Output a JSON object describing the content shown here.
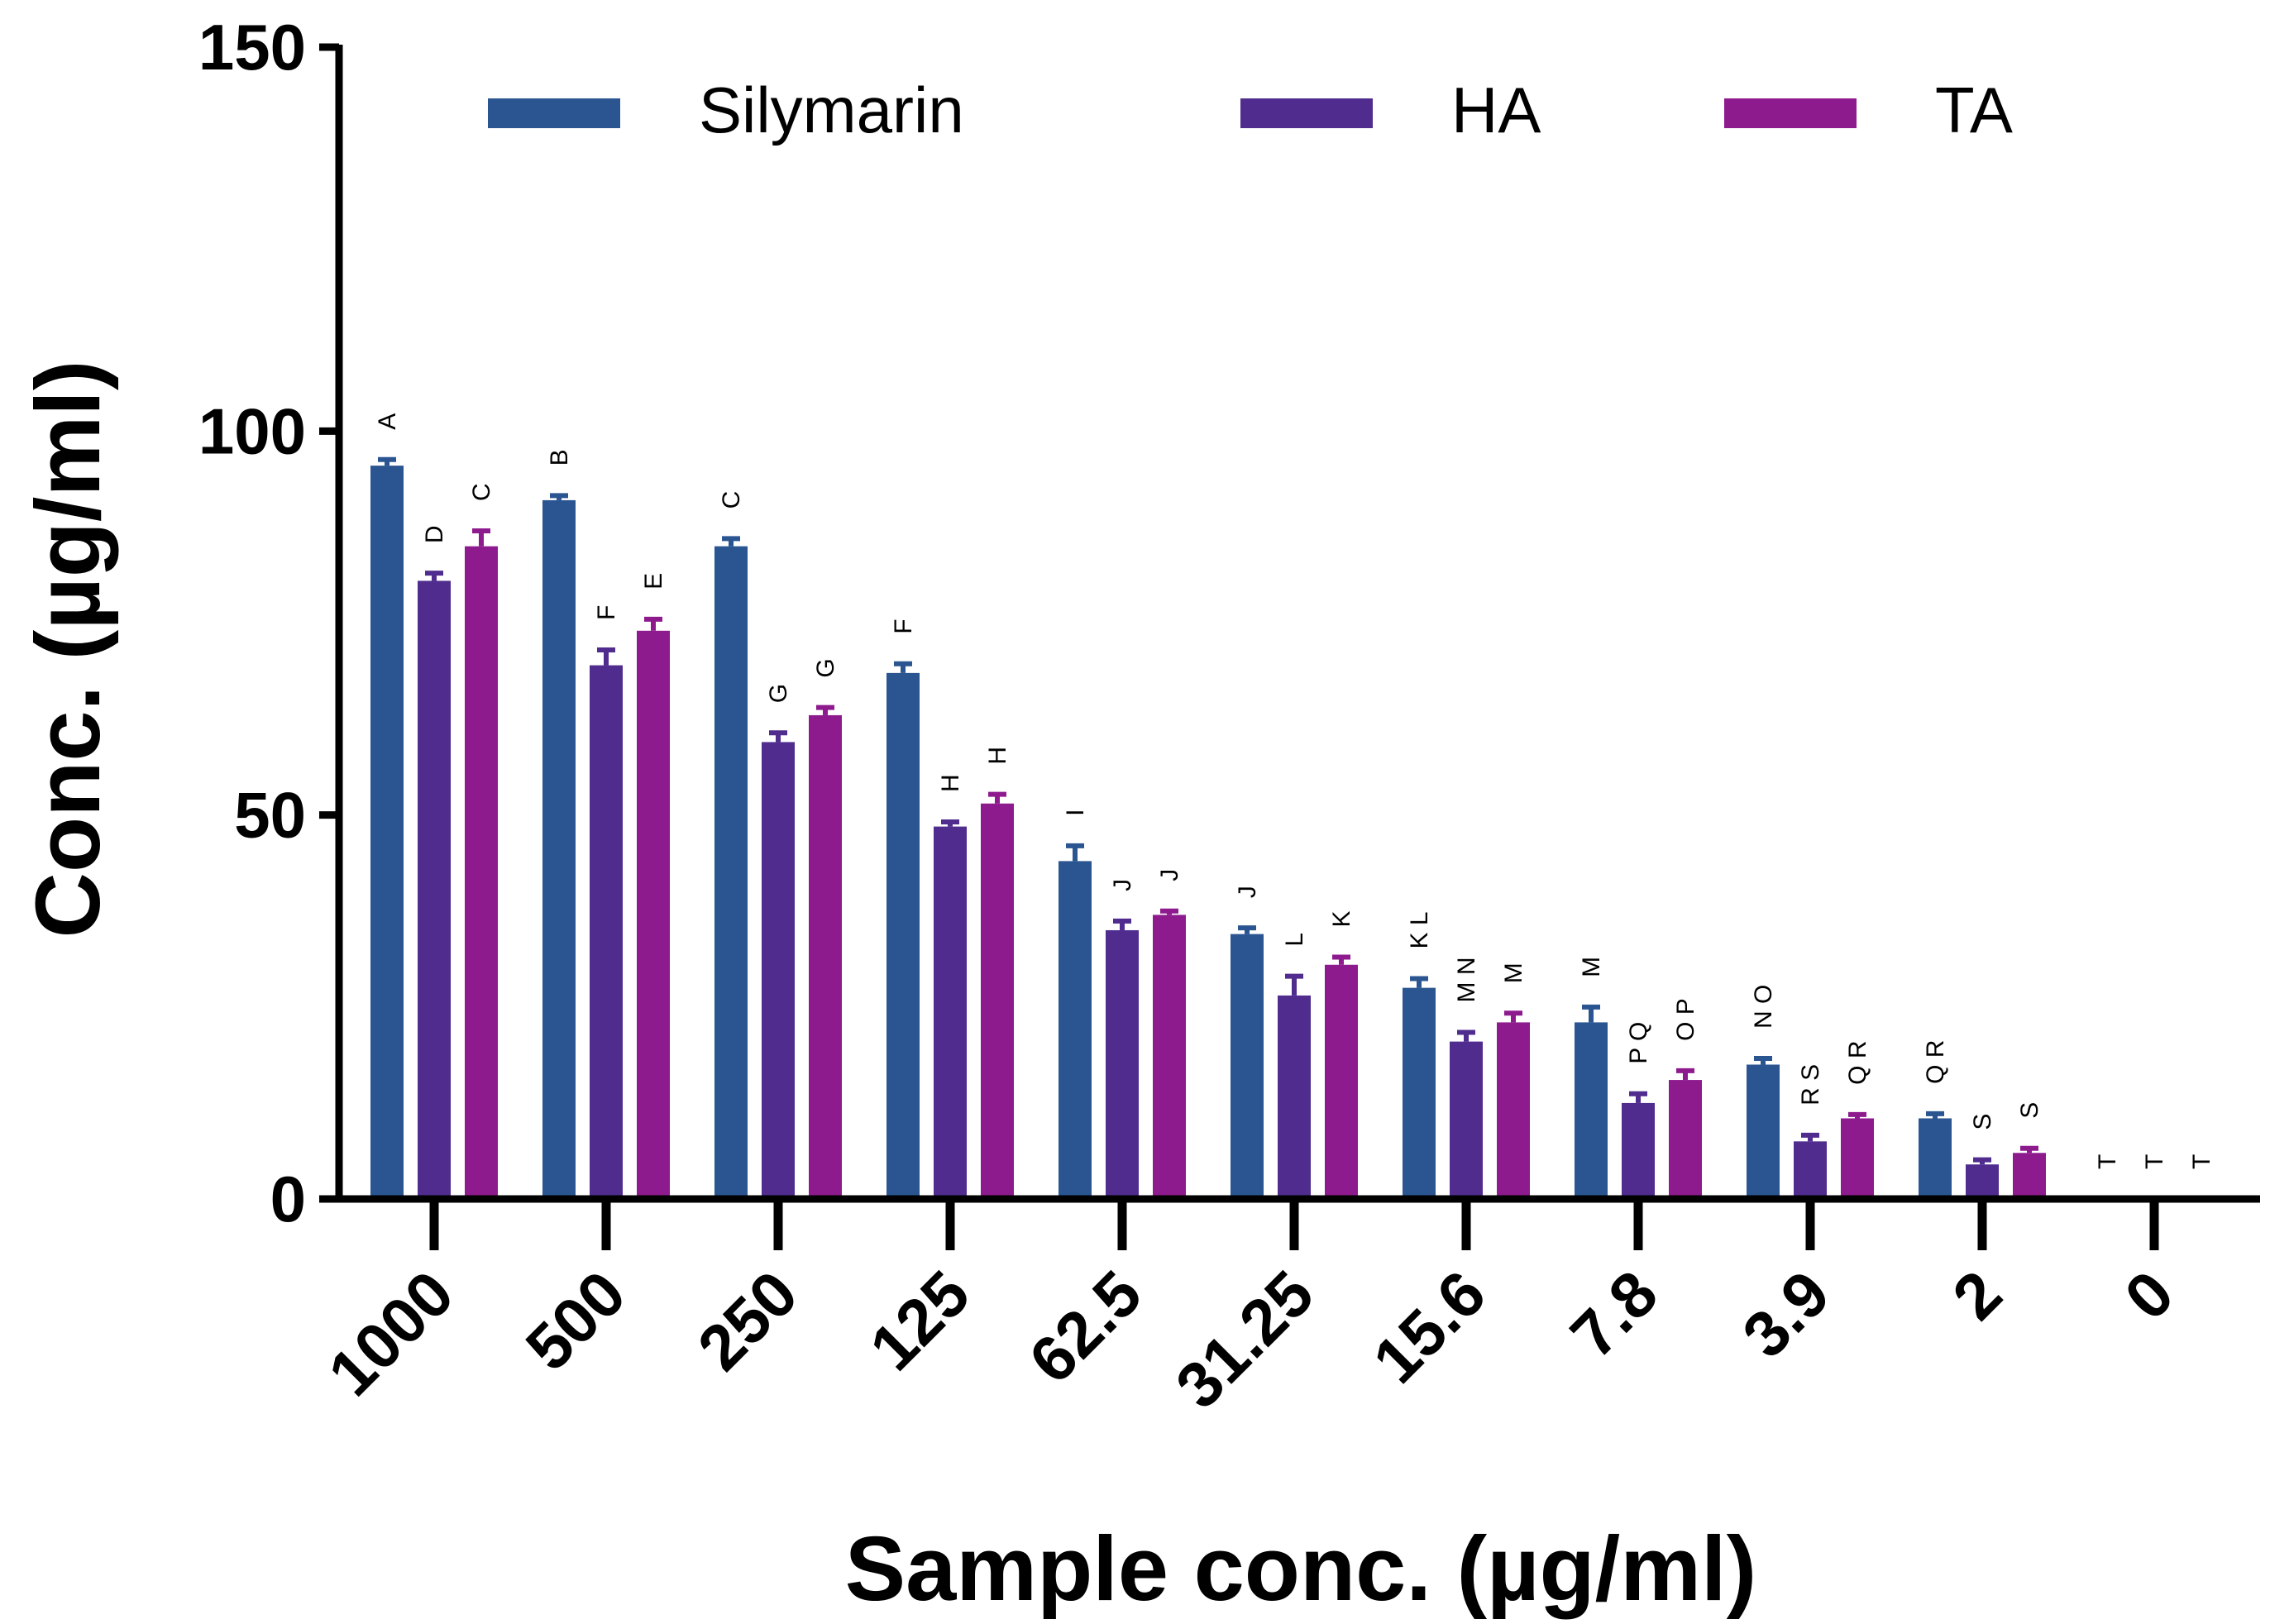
{
  "chart_data": {
    "type": "bar",
    "title": "",
    "xlabel": "Sample conc. (µg/ml)",
    "ylabel": "Conc. (µg/ml)",
    "ylim": [
      0,
      150
    ],
    "yticks": [
      0,
      50,
      100,
      150
    ],
    "grid": false,
    "legend_position": "top",
    "categories": [
      "1000",
      "500",
      "250",
      "125",
      "62.5",
      "31.25",
      "15.6",
      "7.8",
      "3.9",
      "2",
      "0"
    ],
    "series": [
      {
        "name": "Silymarin",
        "color": "#2A5591",
        "values": [
          95.5,
          91,
          85,
          68.5,
          44,
          34.5,
          27.5,
          23,
          17.5,
          10.5,
          0
        ],
        "errors": [
          0.8,
          0.6,
          1.0,
          1.2,
          2.0,
          0.8,
          1.2,
          2.0,
          0.8,
          0.6,
          0
        ],
        "sig": [
          "A",
          "B",
          "C",
          "F",
          "I",
          "J",
          "K L",
          "M",
          "N O",
          "Q R",
          "T"
        ]
      },
      {
        "name": "HA",
        "color": "#4F2C8E",
        "values": [
          80.5,
          69.5,
          59.5,
          48.5,
          35,
          26.5,
          20.5,
          12.5,
          7.5,
          4.5,
          0
        ],
        "errors": [
          1.0,
          2.0,
          1.2,
          0.6,
          1.2,
          2.5,
          1.2,
          1.2,
          0.8,
          0.6,
          0
        ],
        "sig": [
          "D",
          "F",
          "G",
          "H",
          "J",
          "L",
          "M N",
          "P Q",
          "R S",
          "S",
          "T"
        ]
      },
      {
        "name": "TA",
        "color": "#8E1B8E",
        "values": [
          85,
          74,
          63,
          51.5,
          37,
          30.5,
          23,
          15.5,
          10.5,
          6,
          0
        ],
        "errors": [
          2.0,
          1.5,
          1.0,
          1.2,
          0.5,
          1.0,
          1.2,
          1.2,
          0.5,
          0.6,
          0
        ],
        "sig": [
          "C",
          "E",
          "G",
          "H",
          "J",
          "K",
          "M",
          "O P",
          "Q R",
          "S",
          "T"
        ]
      }
    ]
  }
}
